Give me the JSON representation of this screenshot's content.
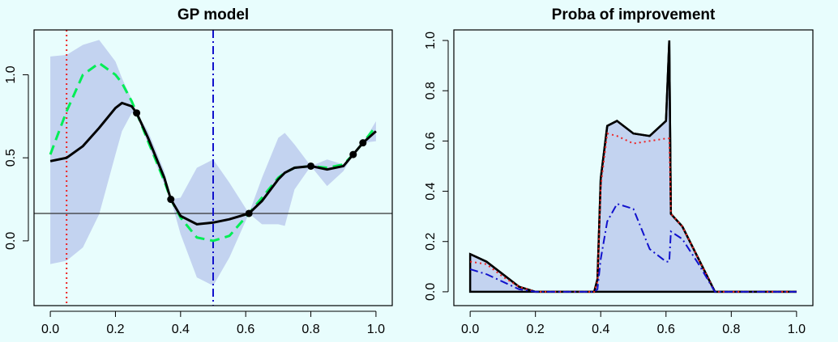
{
  "chart_data": [
    {
      "type": "line",
      "title": "GP model",
      "xlim": [
        -0.05,
        1.05
      ],
      "ylim": [
        -0.39,
        1.27
      ],
      "xticks": [
        {
          "value": 0,
          "label": "0.0"
        },
        0.2,
        0.4,
        0.6,
        0.8,
        {
          "value": 1,
          "label": "1.0"
        }
      ],
      "yticks": [
        {
          "value": 0,
          "label": "0.0"
        },
        0.5,
        {
          "value": 1,
          "label": "1.0"
        }
      ],
      "x": [
        0,
        0.05,
        0.1,
        0.15,
        0.2,
        0.22,
        0.25,
        0.265,
        0.3,
        0.35,
        0.37,
        0.4,
        0.45,
        0.5,
        0.55,
        0.61,
        0.65,
        0.7,
        0.72,
        0.75,
        0.8,
        0.85,
        0.9,
        0.93,
        0.96,
        1.0
      ],
      "band": {
        "color": "#c3d3f0",
        "upper": [
          1.11,
          1.12,
          1.18,
          1.21,
          1.08,
          0.98,
          0.85,
          0.77,
          0.66,
          0.42,
          0.25,
          0.26,
          0.44,
          0.49,
          0.35,
          0.165,
          0.38,
          0.62,
          0.65,
          0.58,
          0.45,
          0.49,
          0.46,
          0.52,
          0.59,
          0.72
        ],
        "lower": [
          -0.14,
          -0.12,
          -0.04,
          0.16,
          0.52,
          0.66,
          0.77,
          0.77,
          0.58,
          0.34,
          0.25,
          0.04,
          -0.22,
          -0.27,
          -0.1,
          0.165,
          0.1,
          0.1,
          0.09,
          0.31,
          0.45,
          0.33,
          0.42,
          0.52,
          0.59,
          0.6
        ]
      },
      "series": [
        {
          "color": "#00ee55",
          "linestyle": "dashed",
          "width": 3,
          "values": [
            0.52,
            0.78,
            1.0,
            1.07,
            1.0,
            0.95,
            0.84,
            0.77,
            0.6,
            0.36,
            0.25,
            0.14,
            0.02,
            0.0,
            0.03,
            0.165,
            0.26,
            0.38,
            0.41,
            0.44,
            0.45,
            0.44,
            0.46,
            0.52,
            0.59,
            0.69
          ]
        },
        {
          "color": "#000000",
          "linestyle": "solid",
          "width": 3,
          "values": [
            0.48,
            0.5,
            0.57,
            0.68,
            0.8,
            0.83,
            0.81,
            0.77,
            0.62,
            0.38,
            0.25,
            0.15,
            0.1,
            0.11,
            0.13,
            0.165,
            0.24,
            0.37,
            0.41,
            0.44,
            0.45,
            0.43,
            0.45,
            0.52,
            0.59,
            0.66
          ]
        }
      ],
      "points": {
        "color": "#000000",
        "x": [
          0.265,
          0.37,
          0.61,
          0.8,
          0.93,
          0.96
        ],
        "y": [
          0.77,
          0.25,
          0.165,
          0.45,
          0.52,
          0.59
        ]
      },
      "hlines": [
        {
          "value": 0.165,
          "color": "#333333",
          "linestyle": "solid"
        }
      ],
      "vlines": [
        {
          "value": 0.05,
          "color": "#ee2222",
          "linestyle": "dotted"
        },
        {
          "value": 0.5,
          "color": "#1111cc",
          "linestyle": "dashdot"
        }
      ]
    },
    {
      "type": "line",
      "title": "Proba of improvement",
      "xlim": [
        -0.05,
        1.05
      ],
      "ylim": [
        -0.055,
        1.042
      ],
      "xticks": [
        {
          "value": 0,
          "label": "0.0"
        },
        0.2,
        0.4,
        0.6,
        0.8,
        {
          "value": 1,
          "label": "1.0"
        }
      ],
      "yticks": [
        {
          "value": 0,
          "label": "0.0"
        },
        0.2,
        0.4,
        0.6,
        0.8,
        {
          "value": 1,
          "label": "1.0"
        }
      ],
      "x": [
        0,
        0.05,
        0.1,
        0.15,
        0.2,
        0.38,
        0.39,
        0.4,
        0.42,
        0.45,
        0.5,
        0.55,
        0.6,
        0.61,
        0.615,
        0.65,
        0.7,
        0.75,
        0.8,
        1.0
      ],
      "series": [
        {
          "color": "#000000",
          "linestyle": "solid",
          "width": 2.5,
          "fill": "#c3d3f0",
          "values": [
            0.15,
            0.12,
            0.07,
            0.02,
            0,
            0,
            0.05,
            0.45,
            0.66,
            0.68,
            0.63,
            0.62,
            0.68,
            1.0,
            0.31,
            0.26,
            0.13,
            0,
            0,
            0
          ]
        },
        {
          "color": "#ee2222",
          "linestyle": "dotted",
          "width": 2,
          "values": [
            0.12,
            0.11,
            0.06,
            0.02,
            0,
            0,
            0.04,
            0.42,
            0.63,
            0.62,
            0.59,
            0.6,
            0.61,
            0.61,
            0.31,
            0.26,
            0.13,
            0,
            0,
            0
          ]
        },
        {
          "color": "#1111cc",
          "linestyle": "dashdot",
          "width": 2,
          "values": [
            0.09,
            0.07,
            0.04,
            0.01,
            0,
            0,
            0.01,
            0.13,
            0.28,
            0.35,
            0.33,
            0.17,
            0.12,
            0.12,
            0.24,
            0.21,
            0.11,
            0,
            0,
            0
          ]
        }
      ]
    }
  ]
}
